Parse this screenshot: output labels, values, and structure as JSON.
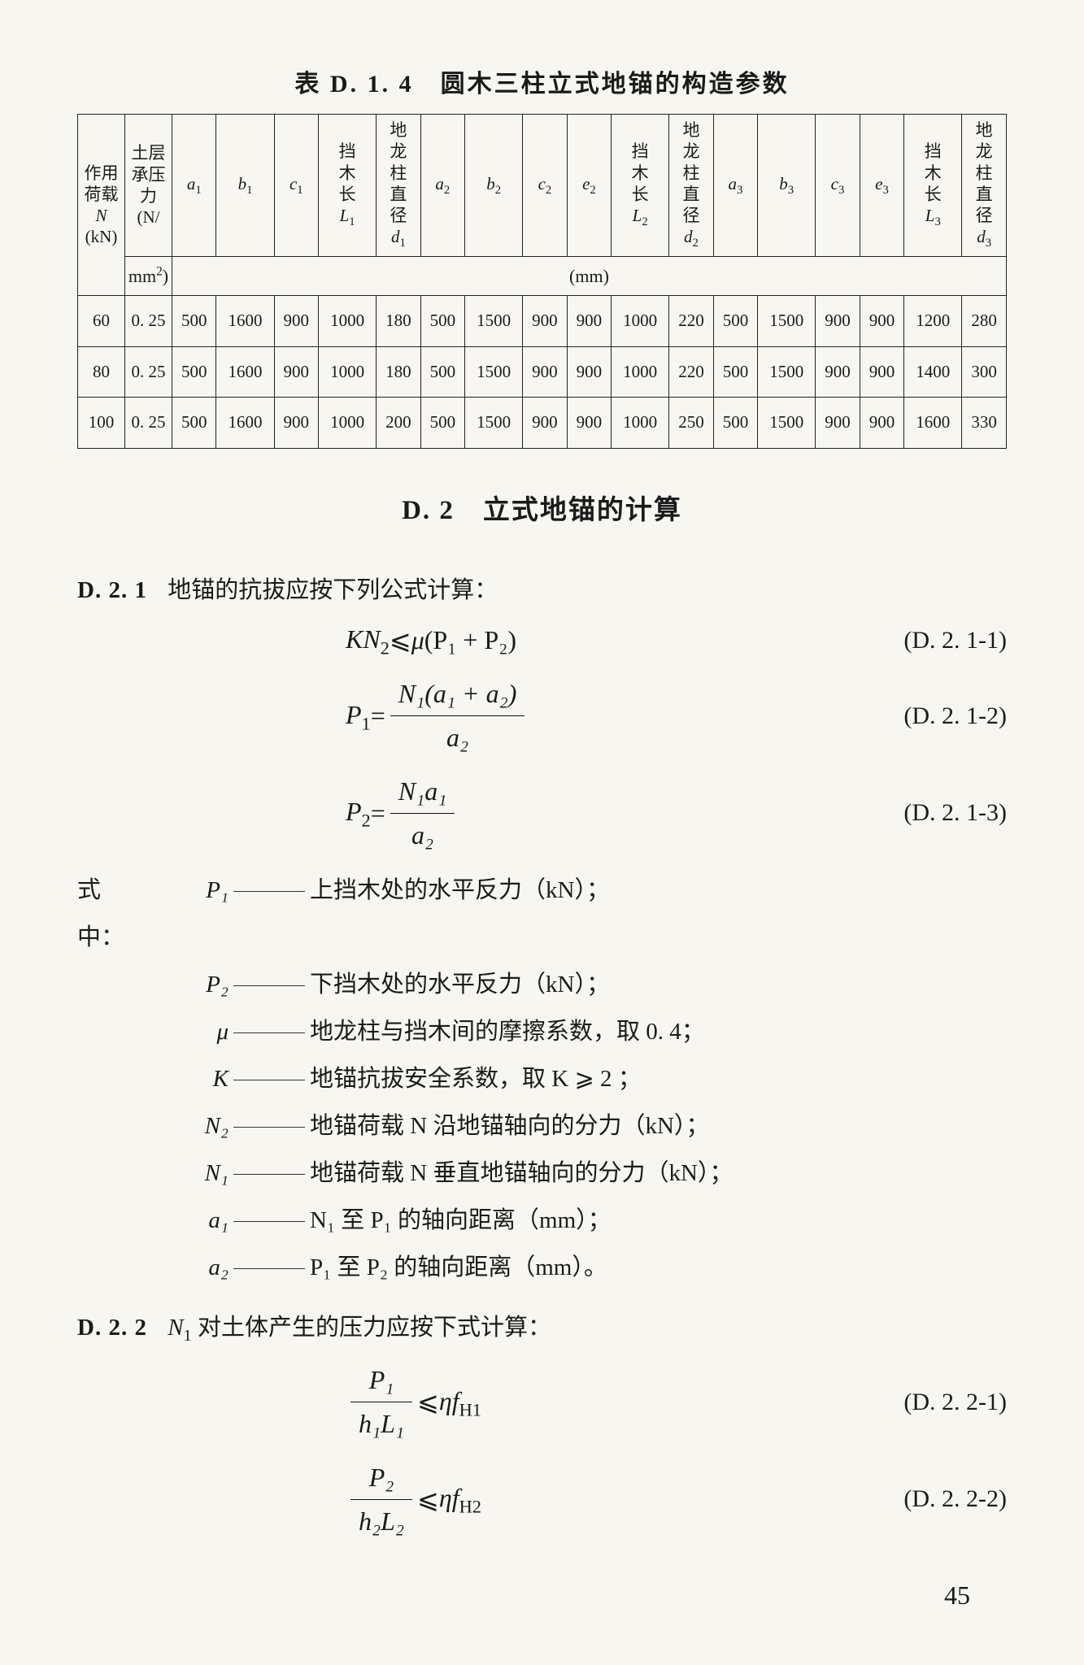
{
  "tableTitle": "表 D. 1. 4　圆木三柱立式地锚的构造参数",
  "headers": {
    "col1": "作用荷载\nN\n(kN)",
    "col2": "土层承压力\n(N/\nmm²)",
    "a1": "a",
    "a1sub": "1",
    "b1": "b",
    "b1sub": "1",
    "c1": "c",
    "c1sub": "1",
    "L1": "挡木长\nL",
    "L1sub": "1",
    "d1": "地龙柱直径\nd",
    "d1sub": "1",
    "a2": "a",
    "a2sub": "2",
    "b2": "b",
    "b2sub": "2",
    "c2": "c",
    "c2sub": "2",
    "e2": "e",
    "e2sub": "2",
    "L2": "挡木长\nL",
    "L2sub": "2",
    "d2": "地龙柱直径\nd",
    "d2sub": "2",
    "a3": "a",
    "a3sub": "3",
    "b3": "b",
    "b3sub": "3",
    "c3": "c",
    "c3sub": "3",
    "e3": "e",
    "e3sub": "3",
    "L3": "挡木长\nL",
    "L3sub": "3",
    "d3": "地龙柱直径\nd",
    "d3sub": "3",
    "unit": "(mm)"
  },
  "rows": [
    {
      "n": "60",
      "p": "0. 25",
      "v": [
        "500",
        "1600",
        "900",
        "1000",
        "180",
        "500",
        "1500",
        "900",
        "900",
        "1000",
        "220",
        "500",
        "1500",
        "900",
        "900",
        "1200",
        "280"
      ]
    },
    {
      "n": "80",
      "p": "0. 25",
      "v": [
        "500",
        "1600",
        "900",
        "1000",
        "180",
        "500",
        "1500",
        "900",
        "900",
        "1000",
        "220",
        "500",
        "1500",
        "900",
        "900",
        "1400",
        "300"
      ]
    },
    {
      "n": "100",
      "p": "0. 25",
      "v": [
        "500",
        "1600",
        "900",
        "1000",
        "200",
        "500",
        "1500",
        "900",
        "900",
        "1000",
        "250",
        "500",
        "1500",
        "900",
        "900",
        "1600",
        "330"
      ]
    }
  ],
  "sectionTitle": "D. 2　立式地锚的计算",
  "clause1": {
    "num": "D. 2. 1",
    "text": "地锚的抗拔应按下列公式计算："
  },
  "eq1": {
    "body_lhs": "KN",
    "body_lhs_sub": "2",
    "le": " ⩽ ",
    "mu": "μ",
    "rhs": "(P₁ + P₂)",
    "tag": "(D. 2. 1-1)"
  },
  "eq2": {
    "lhs": "P",
    "lhs_sub": "1",
    "eq": " = ",
    "num": "N₁(a₁ + a₂)",
    "den": "a₂",
    "tag": "(D. 2. 1-2)"
  },
  "eq3": {
    "lhs": "P",
    "lhs_sub": "2",
    "eq": " = ",
    "num": "N₁a₁",
    "den": "a₂",
    "tag": "(D. 2. 1-3)"
  },
  "defsLead": "式中：",
  "defs": [
    {
      "sym": "P₁",
      "text": "上挡木处的水平反力（kN）；"
    },
    {
      "sym": "P₂",
      "text": "下挡木处的水平反力（kN）；"
    },
    {
      "sym": "μ",
      "text": "地龙柱与挡木间的摩擦系数，取 0. 4；"
    },
    {
      "sym": "K",
      "text": "地锚抗拔安全系数，取 K ⩾ 2 ；"
    },
    {
      "sym": "N₂",
      "text": "地锚荷载 N 沿地锚轴向的分力（kN）；"
    },
    {
      "sym": "N₁",
      "text": "地锚荷载 N 垂直地锚轴向的分力（kN）；"
    },
    {
      "sym": "a₁",
      "text": "N₁ 至 P₁ 的轴向距离（mm）；"
    },
    {
      "sym": "a₂",
      "text": "P₁ 至 P₂ 的轴向距离（mm）。"
    }
  ],
  "clause2": {
    "num": "D. 2. 2",
    "text": "N₁ 对土体产生的压力应按下式计算："
  },
  "eq4": {
    "num": "P₁",
    "den": "h₁L₁",
    "le": " ⩽ ",
    "rhs": "ηf",
    "rhs_sub": "H1",
    "tag": "(D. 2. 2-1)"
  },
  "eq5": {
    "num": "P₂",
    "den": "h₂L₂",
    "le": " ⩽ ",
    "rhs": "ηf",
    "rhs_sub": "H2",
    "tag": "(D. 2. 2-2)"
  },
  "pageNum": "45"
}
